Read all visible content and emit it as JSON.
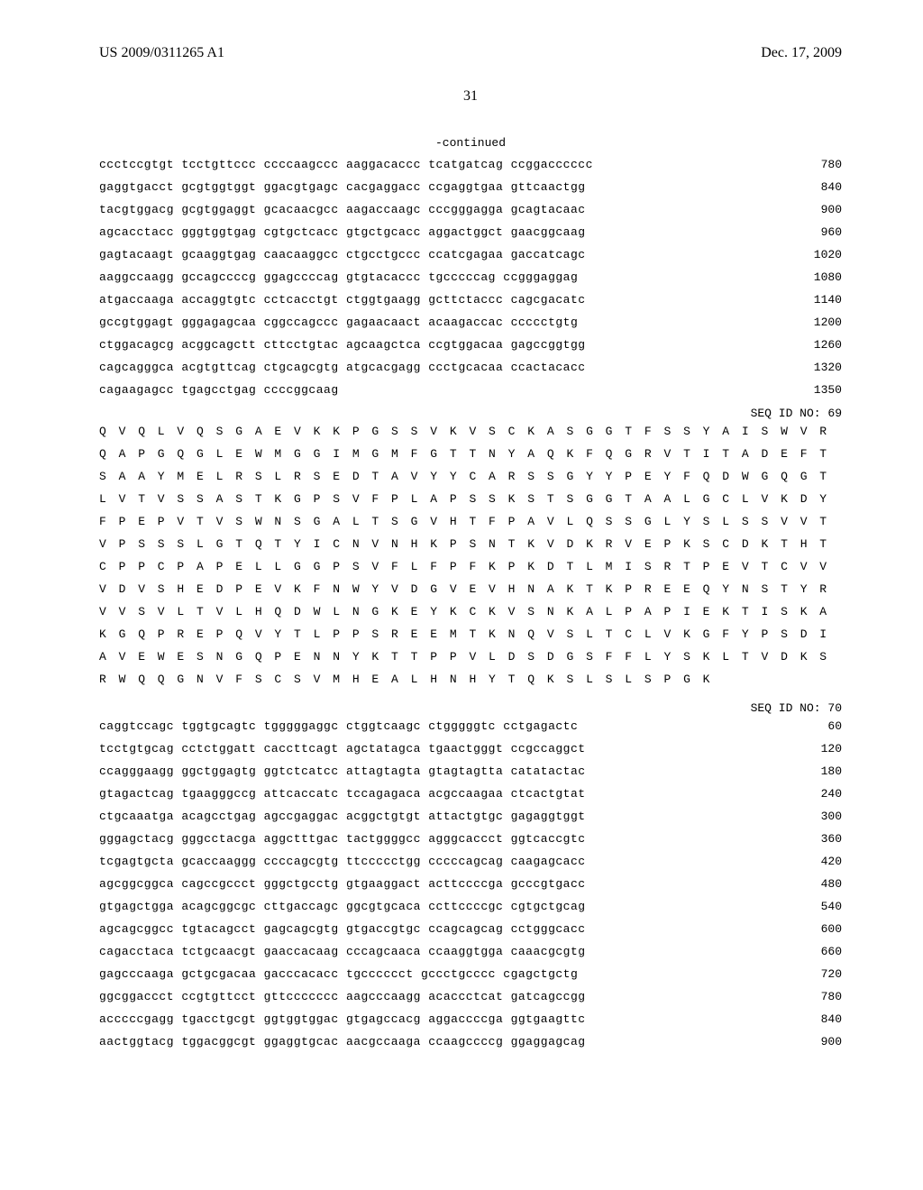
{
  "header": {
    "publication_id": "US 2009/0311265 A1",
    "publication_date": "Dec. 17, 2009"
  },
  "page_number": "31",
  "continued_label": "-continued",
  "seq_block_1": {
    "lines": [
      {
        "text": "ccctccgtgt tcctgttccc ccccaagccc aaggacaccc tcatgatcag ccggacccccc",
        "num": "780"
      },
      {
        "text": "gaggtgacct gcgtggtggt ggacgtgagc cacgaggacc ccgaggtgaa gttcaactgg",
        "num": "840"
      },
      {
        "text": "tacgtggacg gcgtggaggt gcacaacgcc aagaccaagc cccgggagga gcagtacaac",
        "num": "900"
      },
      {
        "text": "agcacctacc gggtggtgag cgtgctcacc gtgctgcacc aggactggct gaacggcaag",
        "num": "960"
      },
      {
        "text": "gagtacaagt gcaaggtgag caacaaggcc ctgcctgccc ccatcgagaa gaccatcagc",
        "num": "1020"
      },
      {
        "text": "aaggccaagg gccagccccg ggagccccag gtgtacaccc tgcccccag ccgggaggag",
        "num": "1080"
      },
      {
        "text": "atgaccaaga accaggtgtc cctcacctgt ctggtgaagg gcttctaccc cagcgacatc",
        "num": "1140"
      },
      {
        "text": "gccgtggagt gggagagcaa cggccagccc gagaacaact acaagaccac ccccctgtg",
        "num": "1200"
      },
      {
        "text": "ctggacagcg acggcagctt cttcctgtac agcaagctca ccgtggacaa gagccggtgg",
        "num": "1260"
      },
      {
        "text": "cagcagggca acgtgttcag ctgcagcgtg atgcacgagg ccctgcacaa ccactacacc",
        "num": "1320"
      },
      {
        "text": "cagaagagcc tgagcctgag ccccggcaag",
        "num": "1350"
      }
    ]
  },
  "seq_id_69": "SEQ ID NO: 69",
  "protein_seq": {
    "lines": [
      "Q V Q L V Q S G A E V K K P G S S V K V S C K A S G G T F S S Y A I S W V R",
      "Q A P G Q G L E W M G G I M G M F G T T N Y A Q K F Q G R V T I T A D E F T",
      "S A A Y M E L R S L R S E D T A V Y Y C A R S S G Y Y P E Y F Q D W G Q G T",
      "L V T V S S A S T K G P S V F P L A P S S K S T S G G T A A L G C L V K D Y",
      "F P E P V T V S W N S G A L T S G V H T F P A V L Q S S G L Y S L S S V V T",
      "V P S S S L G T Q T Y I C N V N H K P S N T K V D K R V E P K S C D K T H T",
      "C P P C P A P E L L G G P S V F L F P F K P K D T L M I S R T P E V T C V V",
      "V D V S H E D P E V K F N W Y V D G V E V H N A K T K P R E E Q Y N S T Y R",
      "V V S V L T V L H Q D W L N G K E Y K C K V S N K A L P A P I E K T I S K A",
      "K G Q P R E P Q V Y T L P P S R E E M T K N Q V S L T C L V K G F Y P S D I",
      "A V E W E S N G Q P E N N Y K T T P P V L D S D G S F F L Y S K L T V D K S",
      "R W Q Q G N V F S C S V M H E A L H N H Y T Q K S L S L S P G K"
    ]
  },
  "seq_id_70": "SEQ ID NO: 70",
  "seq_block_2": {
    "lines": [
      {
        "text": "caggtccagc tggtgcagtc tgggggaggc ctggtcaagc ctgggggtc cctgagactc",
        "num": "60"
      },
      {
        "text": "tcctgtgcag cctctggatt caccttcagt agctatagca tgaactgggt ccgccaggct",
        "num": "120"
      },
      {
        "text": "ccagggaagg ggctggagtg ggtctcatcc attagtagta gtagtagtta catatactac",
        "num": "180"
      },
      {
        "text": "gtagactcag tgaagggccg attcaccatc tccagagaca acgccaagaa ctcactgtat",
        "num": "240"
      },
      {
        "text": "ctgcaaatga acagcctgag agccgaggac acggctgtgt attactgtgc gagaggtggt",
        "num": "300"
      },
      {
        "text": "gggagctacg gggcctacga aggctttgac tactggggcc agggcaccct ggtcaccgtc",
        "num": "360"
      },
      {
        "text": "tcgagtgcta gcaccaaggg ccccagcgtg ttccccctgg cccccagcag caagagcacc",
        "num": "420"
      },
      {
        "text": "agcggcggca cagccgccct gggctgcctg gtgaaggact acttccccga gcccgtgacc",
        "num": "480"
      },
      {
        "text": "gtgagctgga acagcggcgc cttgaccagc ggcgtgcaca ccttccccgc cgtgctgcag",
        "num": "540"
      },
      {
        "text": "agcagcggcc tgtacagcct gagcagcgtg gtgaccgtgc ccagcagcag cctgggcacc",
        "num": "600"
      },
      {
        "text": "cagacctaca tctgcaacgt gaaccacaag cccagcaaca ccaaggtgga caaacgcgtg",
        "num": "660"
      },
      {
        "text": "gagcccaaga gctgcgacaa gacccacacc tgcccccct gccctgcccc cgagctgctg",
        "num": "720"
      },
      {
        "text": "ggcggaccct ccgtgttcct gttccccccc aagcccaagg acaccctcat gatcagccgg",
        "num": "780"
      },
      {
        "text": "acccccgagg tgacctgcgt ggtggtggac gtgagccacg aggaccccga ggtgaagttc",
        "num": "840"
      },
      {
        "text": "aactggtacg tggacggcgt ggaggtgcac aacgccaaga ccaagccccg ggaggagcag",
        "num": "900"
      }
    ]
  }
}
